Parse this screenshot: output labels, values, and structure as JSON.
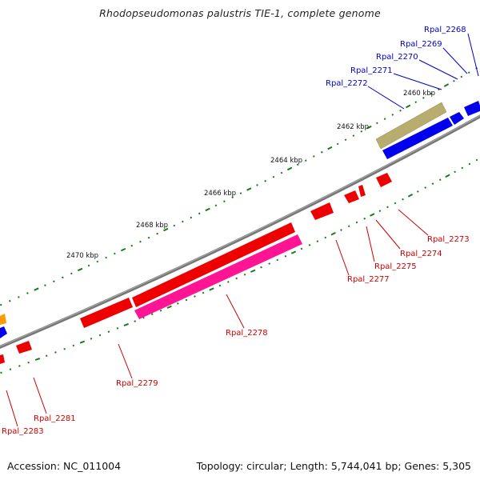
{
  "title": "Rhodopseudomonas palustris TIE-1, complete genome",
  "footer": {
    "accession": "Accession: NC_011004",
    "summary": "Topology: circular; Length: 5,744,041 bp; Genes: 5,305"
  },
  "colors": {
    "forward_label": "#0000cc",
    "reverse_label": "#cc0000",
    "backbone": "#808080",
    "tick_marks": "#1a7a1a",
    "gene_blue": "#0000ee",
    "gene_red": "#ee0000",
    "gene_magenta": "#ff1493",
    "gene_khaki": "#b8ad6e",
    "gene_orange": "#ff9900"
  },
  "kbp_labels": [
    "2460 kbp",
    "2462 kbp",
    "2464 kbp",
    "2466 kbp",
    "2468 kbp",
    "2470 kbp"
  ],
  "forward_genes": [
    "Rpal_2268",
    "Rpal_2269",
    "Rpal_2270",
    "Rpal_2271",
    "Rpal_2272"
  ],
  "reverse_genes": [
    "Rpal_2273",
    "Rpal_2274",
    "Rpal_2275",
    "Rpal_2277",
    "Rpal_2278",
    "Rpal_2279",
    "Rpal_2281",
    "Rpal_2283"
  ]
}
